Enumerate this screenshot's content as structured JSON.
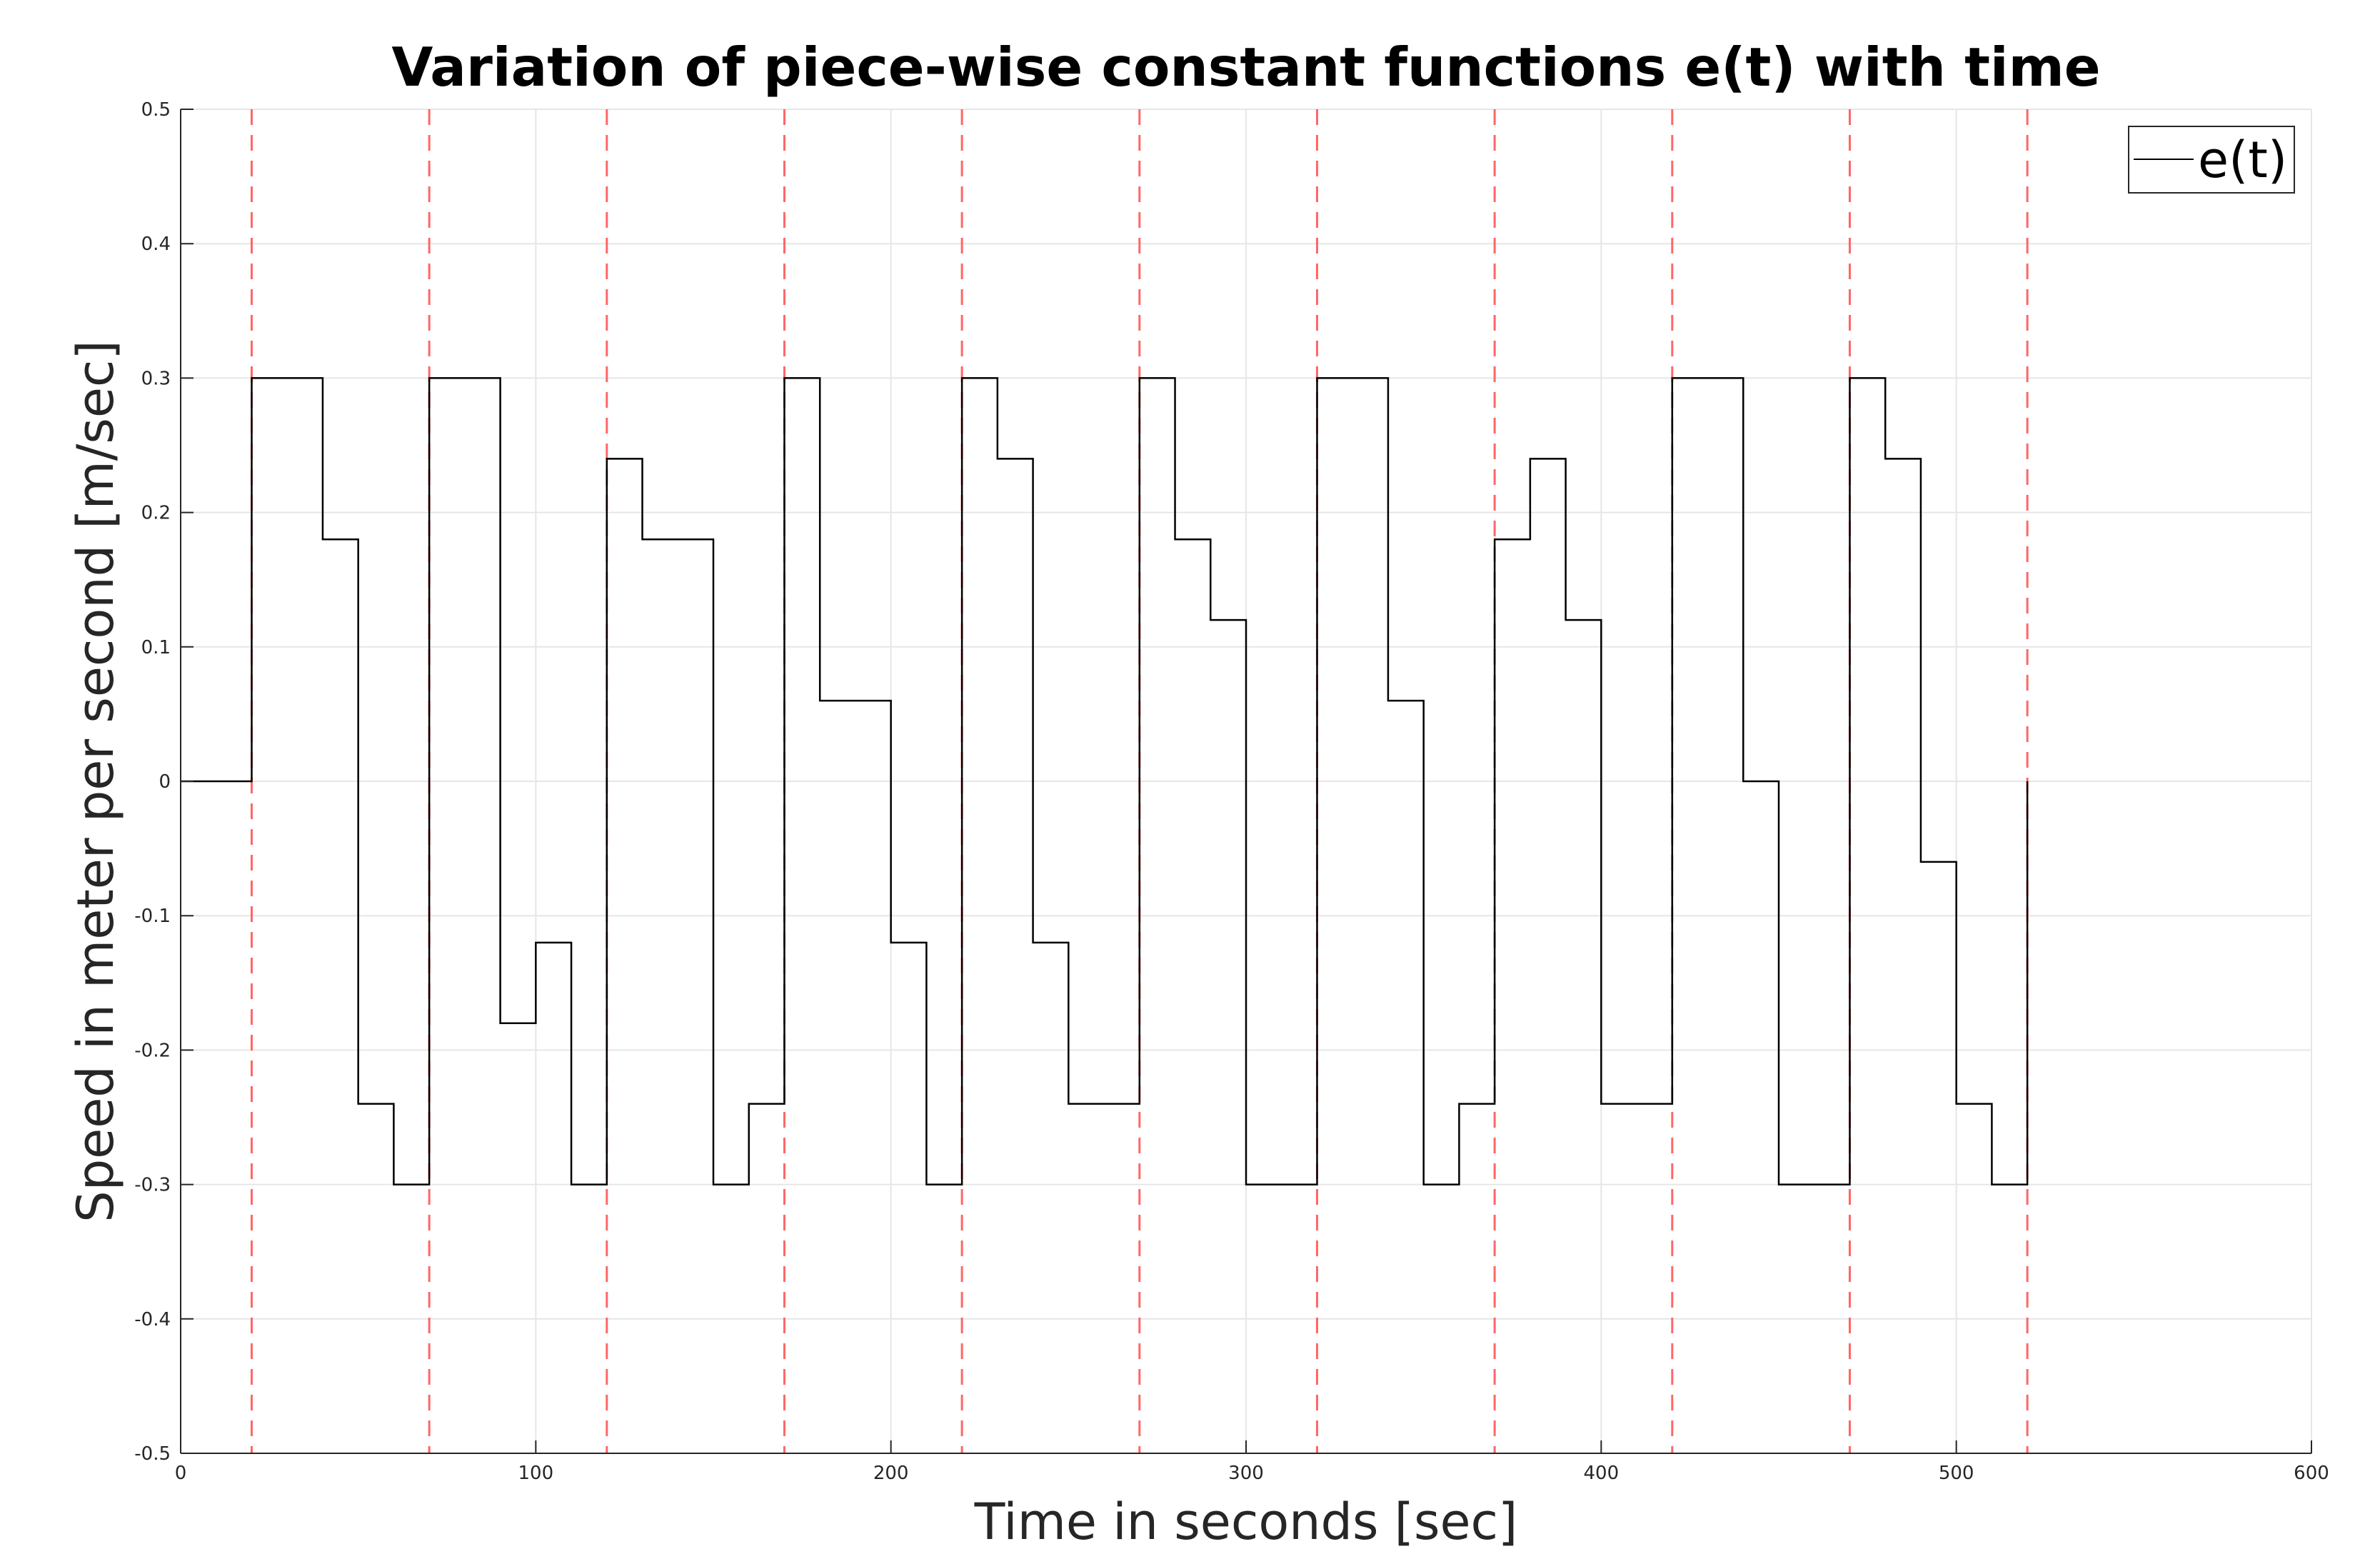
{
  "chart_data": {
    "type": "line",
    "title": "Variation of piece-wise constant functions e(t) with time",
    "xlabel": "Time in seconds [sec]",
    "ylabel": "Speed in meter per second [m/sec]",
    "xlim": [
      0,
      600
    ],
    "ylim": [
      -0.5,
      0.5
    ],
    "grid": true,
    "legend_position": "top-right",
    "x_ticks": [
      {
        "value": 0,
        "label": "0"
      },
      {
        "value": 100,
        "label": "100"
      },
      {
        "value": 200,
        "label": "200"
      },
      {
        "value": 300,
        "label": "300"
      },
      {
        "value": 400,
        "label": "400"
      },
      {
        "value": 500,
        "label": "500"
      },
      {
        "value": 600,
        "label": "600"
      }
    ],
    "y_ticks": [
      {
        "value": -0.5,
        "label": "-0.5"
      },
      {
        "value": -0.4,
        "label": "-0.4"
      },
      {
        "value": -0.3,
        "label": "-0.3"
      },
      {
        "value": -0.2,
        "label": "-0.2"
      },
      {
        "value": -0.1,
        "label": "-0.1"
      },
      {
        "value": 0,
        "label": "0"
      },
      {
        "value": 0.1,
        "label": "0.1"
      },
      {
        "value": 0.2,
        "label": "0.2"
      },
      {
        "value": 0.3,
        "label": "0.3"
      },
      {
        "value": 0.4,
        "label": "0.4"
      },
      {
        "value": 0.5,
        "label": "0.5"
      }
    ],
    "series": [
      {
        "name": "e(t)",
        "color": "#000000",
        "style": "stairs",
        "x": [
          0,
          20,
          40,
          50,
          60,
          70,
          90,
          100,
          110,
          120,
          130,
          150,
          160,
          170,
          180,
          200,
          210,
          220,
          230,
          240,
          250,
          270,
          280,
          290,
          300,
          320,
          340,
          350,
          360,
          370,
          380,
          390,
          400,
          420,
          440,
          450,
          470,
          480,
          490,
          500,
          510,
          520
        ],
        "y": [
          0,
          0.3,
          0.18,
          -0.24,
          -0.3,
          0.3,
          -0.18,
          -0.12,
          -0.3,
          0.24,
          0.18,
          -0.3,
          -0.24,
          0.3,
          0.06,
          -0.12,
          -0.3,
          0.3,
          0.24,
          -0.12,
          -0.24,
          0.3,
          0.18,
          0.12,
          -0.3,
          0.3,
          0.06,
          -0.3,
          -0.24,
          0.18,
          0.24,
          0.12,
          -0.24,
          0.3,
          0,
          -0.3,
          0.3,
          0.24,
          -0.06,
          -0.24,
          -0.3,
          0
        ]
      }
    ],
    "vertical_markers": {
      "color": "#ff6666",
      "style": "dashed",
      "x": [
        20,
        70,
        120,
        170,
        220,
        270,
        320,
        370,
        420,
        470,
        520
      ]
    }
  }
}
